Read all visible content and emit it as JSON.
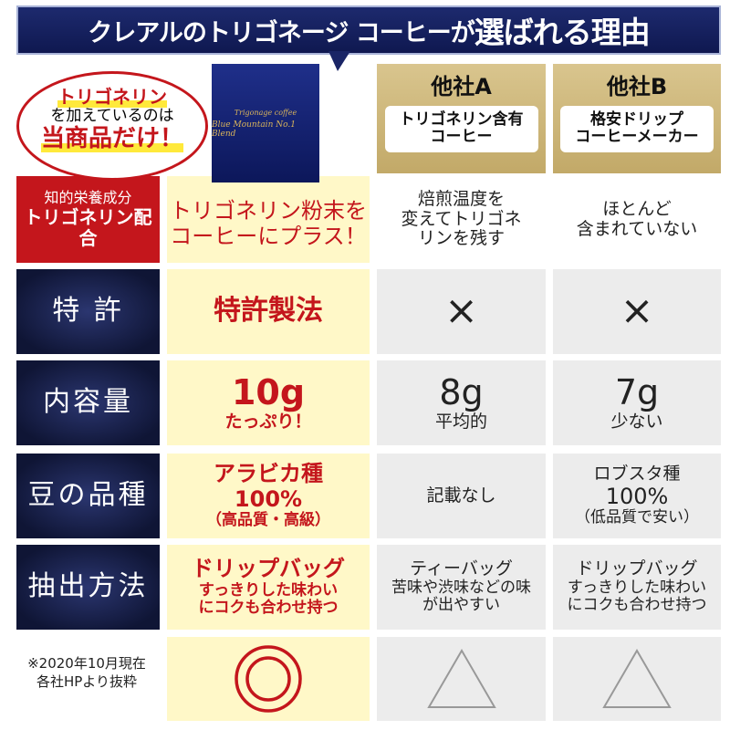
{
  "title": {
    "main": "クレアルのトリゴネージ コーヒーが",
    "emph": "選ばれる理由"
  },
  "bubble": {
    "line1": "トリゴネリン",
    "line2": "を加えているのは",
    "line3": "当商品だけ！"
  },
  "package": {
    "brand": "Trigonage coffee",
    "name": "Blue Mountain No.1 Blend"
  },
  "columns": [
    {
      "name": "他社A",
      "desc": "トリゴネリン含有コーヒー"
    },
    {
      "name": "他社B",
      "desc": "格安ドリップコーヒーメーカー"
    }
  ],
  "rows": [
    {
      "label": [
        "知的栄養成分",
        "トリゴネリン配合"
      ],
      "ours": [
        "トリゴネリン粉末を",
        "コーヒーにプラス！"
      ],
      "a": [
        "焙煎温度を",
        "変えてトリゴネ",
        "リンを残す"
      ],
      "b": [
        "ほとんど",
        "含まれていない"
      ]
    },
    {
      "label": "特 許",
      "ours": "特許製法",
      "a": "×",
      "b": "×"
    },
    {
      "label": "内容量",
      "ours": [
        "10g",
        "たっぷり！"
      ],
      "a": [
        "8g",
        "平均的"
      ],
      "b": [
        "7g",
        "少ない"
      ]
    },
    {
      "label": "豆の品種",
      "ours": [
        "アラビカ種",
        "100%",
        "（高品質・高級）"
      ],
      "a": "記載なし",
      "b": [
        "ロブスタ種",
        "100%",
        "（低品質で安い）"
      ]
    },
    {
      "label": "抽出方法",
      "ours": [
        "ドリップバッグ",
        "すっきりした味わい",
        "にコクも合わせ持つ"
      ],
      "a": [
        "ティーバッグ",
        "苦味や渋味などの味が出やすい"
      ],
      "b": [
        "ドリップバッグ",
        "すっきりした味わいにコクも合わせ持つ"
      ]
    }
  ],
  "rating": {
    "ours": "double-circle-icon",
    "a": "triangle-icon",
    "b": "triangle-icon"
  },
  "note": [
    "※2020年10月現在",
    "各社HPより抜粋"
  ],
  "colors": {
    "navy": "#141c4d",
    "red": "#c4161c",
    "cream": "#fff8c8",
    "gold": "#c9b274",
    "gray": "#ececec"
  }
}
